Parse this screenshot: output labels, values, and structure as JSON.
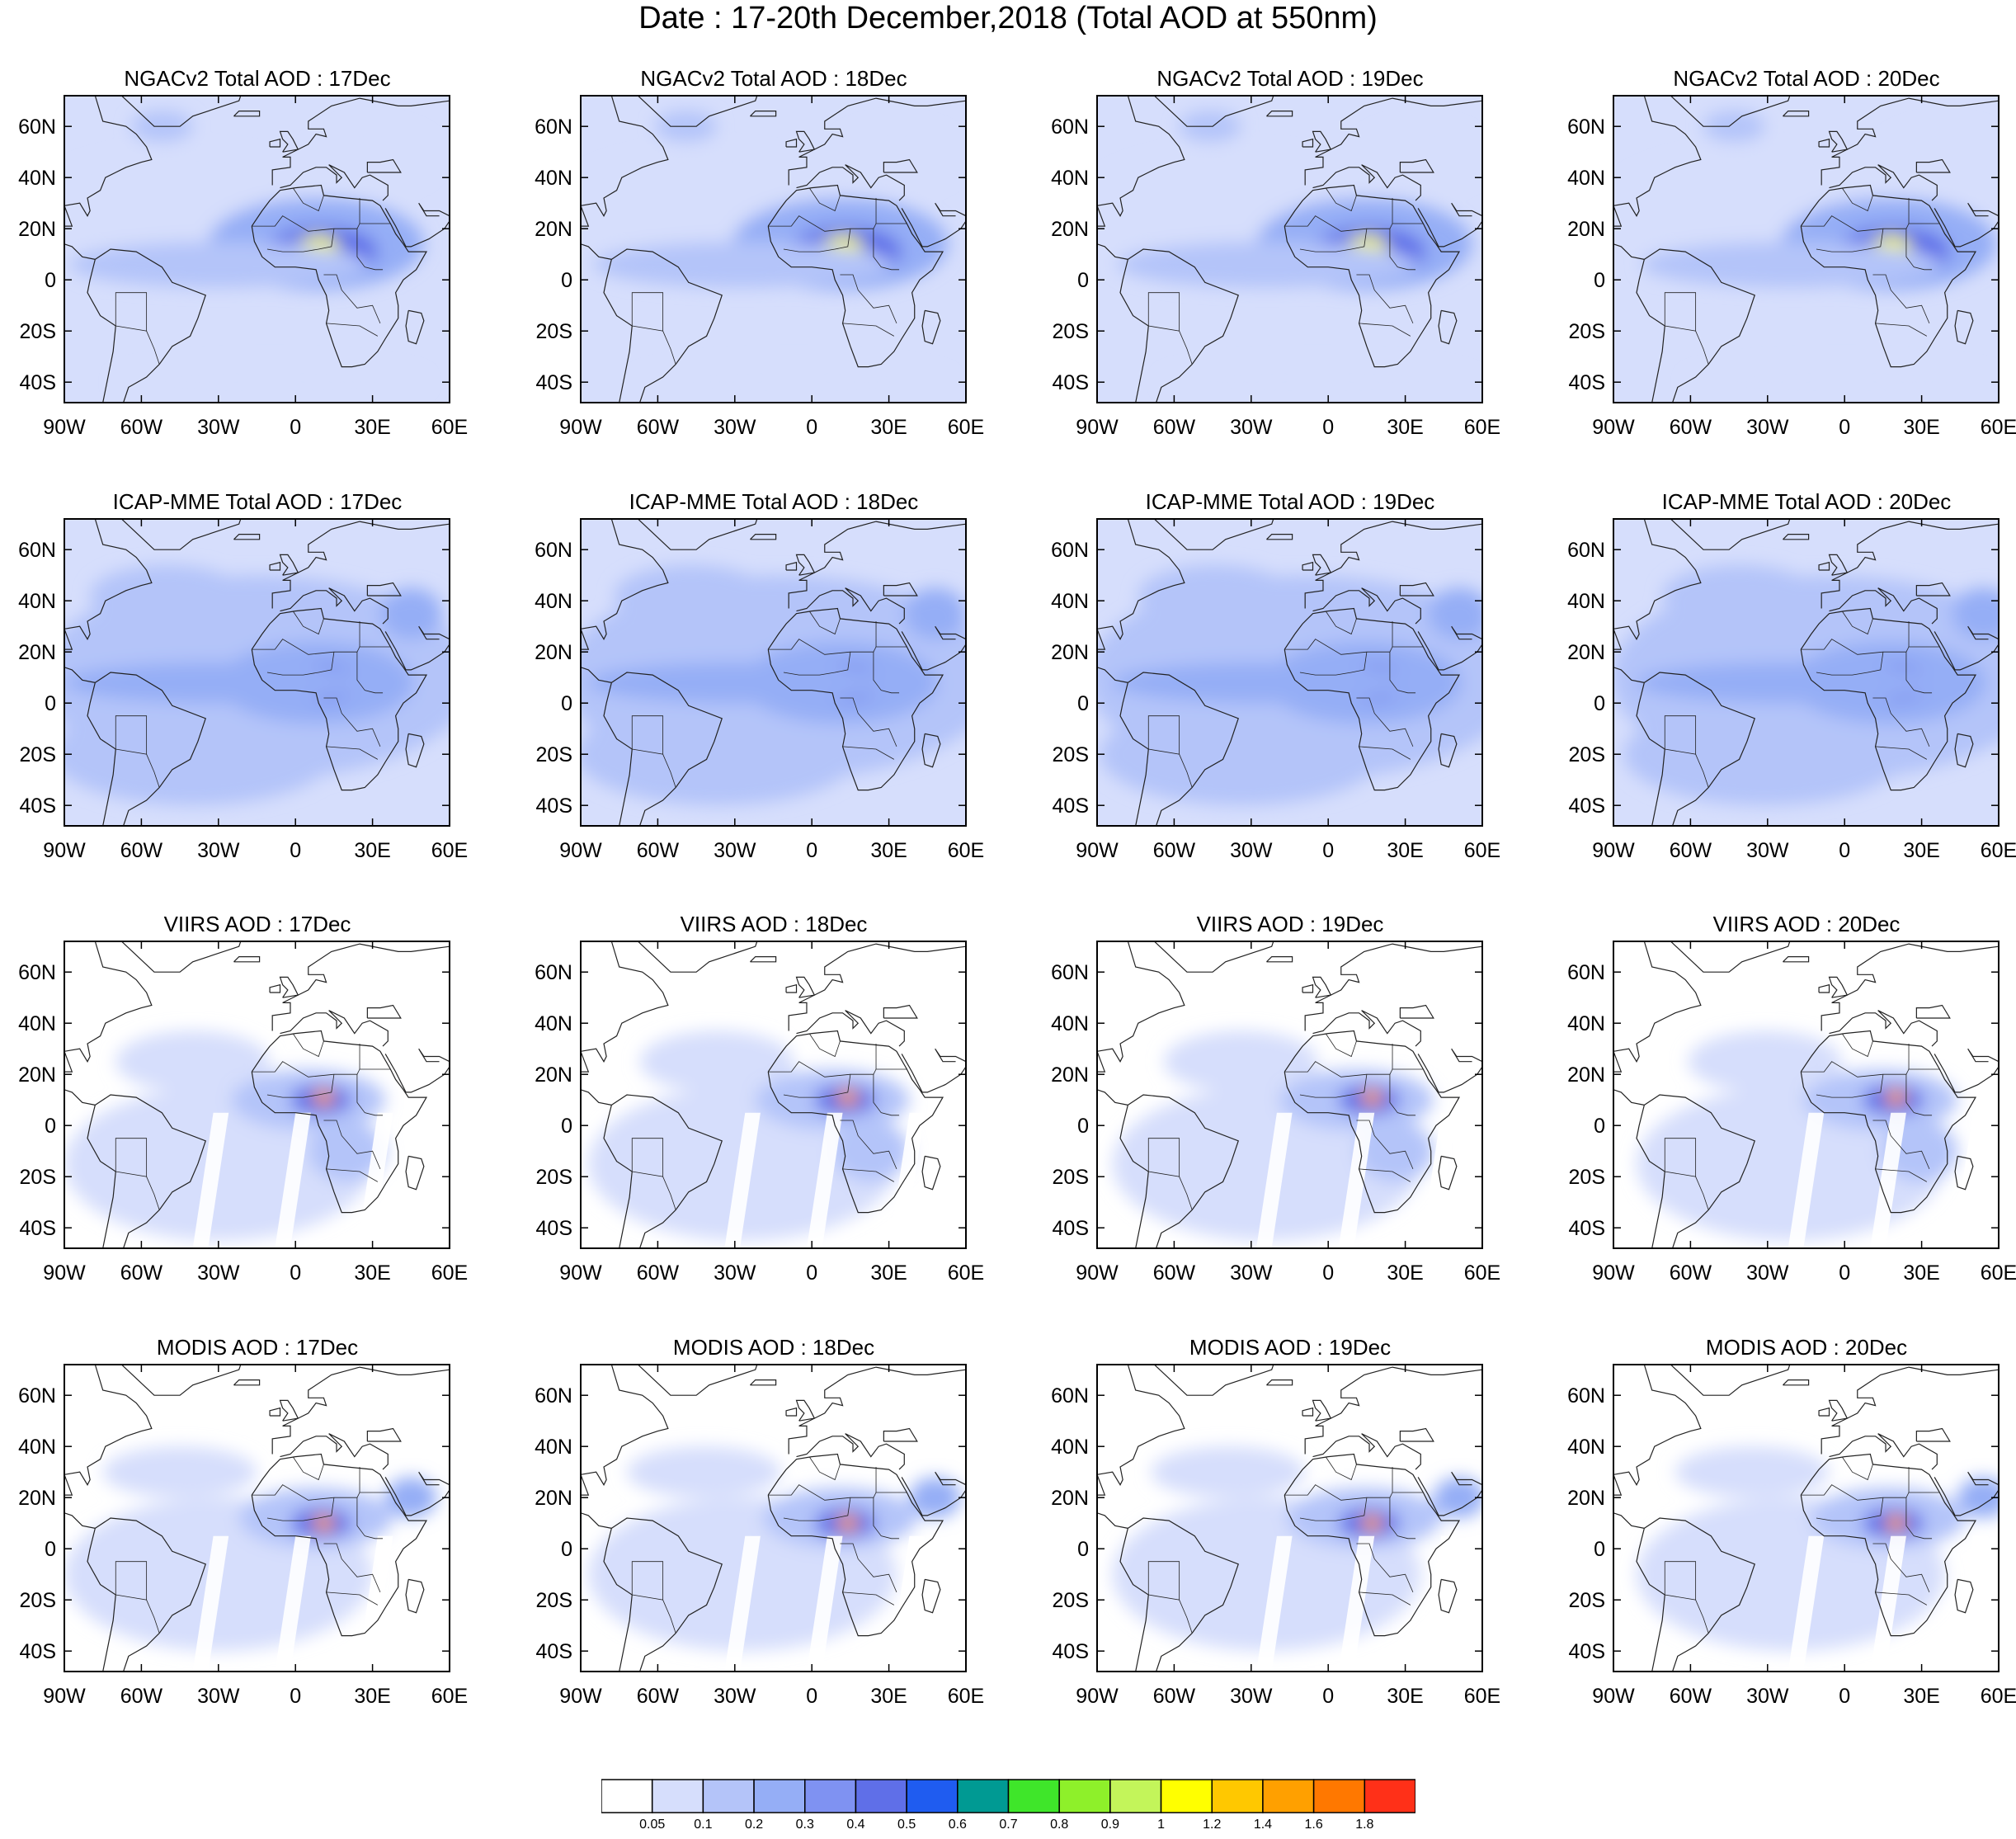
{
  "title": "Date : 17-20th December,2018 (Total AOD at 550nm)",
  "lat_ticks": [
    "60N",
    "40N",
    "20N",
    "0",
    "20S",
    "40S"
  ],
  "lon_ticks": [
    "90W",
    "60W",
    "30W",
    "0",
    "30E",
    "60E"
  ],
  "colors": {
    "ocean": "#ffffff",
    "coast": "#222222",
    "frame": "#000000"
  },
  "panels": [
    {
      "title": "NGACv2 Total AOD : 17Dec",
      "source": "NGACv2",
      "day": 17
    },
    {
      "title": "NGACv2 Total AOD : 18Dec",
      "source": "NGACv2",
      "day": 18
    },
    {
      "title": "NGACv2 Total AOD : 19Dec",
      "source": "NGACv2",
      "day": 19
    },
    {
      "title": "NGACv2 Total AOD : 20Dec",
      "source": "NGACv2",
      "day": 20
    },
    {
      "title": "ICAP-MME Total AOD : 17Dec",
      "source": "ICAP-MME",
      "day": 17
    },
    {
      "title": "ICAP-MME Total AOD : 18Dec",
      "source": "ICAP-MME",
      "day": 18
    },
    {
      "title": "ICAP-MME Total AOD : 19Dec",
      "source": "ICAP-MME",
      "day": 19
    },
    {
      "title": "ICAP-MME Total AOD : 20Dec",
      "source": "ICAP-MME",
      "day": 20
    },
    {
      "title": "VIIRS AOD : 17Dec",
      "source": "VIIRS",
      "day": 17
    },
    {
      "title": "VIIRS AOD : 18Dec",
      "source": "VIIRS",
      "day": 18
    },
    {
      "title": "VIIRS AOD : 19Dec",
      "source": "VIIRS",
      "day": 19
    },
    {
      "title": "VIIRS AOD : 20Dec",
      "source": "VIIRS",
      "day": 20
    },
    {
      "title": "MODIS AOD : 17Dec",
      "source": "MODIS",
      "day": 17
    },
    {
      "title": "MODIS AOD : 18Dec",
      "source": "MODIS",
      "day": 18
    },
    {
      "title": "MODIS AOD : 19Dec",
      "source": "MODIS",
      "day": 19
    },
    {
      "title": "MODIS AOD : 20Dec",
      "source": "MODIS",
      "day": 20
    }
  ],
  "colorbar": {
    "colors": [
      "#ffffff",
      "#d6defc",
      "#b4c4f9",
      "#95aef6",
      "#7f92f2",
      "#5f6fe8",
      "#1f5cf0",
      "#009a93",
      "#3fe62a",
      "#8ef02a",
      "#c3f55a",
      "#ffff00",
      "#ffc800",
      "#ffa000",
      "#ff7800",
      "#ff3018"
    ],
    "labels": [
      "0.05",
      "0.1",
      "0.2",
      "0.3",
      "0.4",
      "0.5",
      "0.6",
      "0.7",
      "0.8",
      "0.9",
      "1",
      "1.2",
      "1.4",
      "1.6",
      "1.8"
    ]
  }
}
